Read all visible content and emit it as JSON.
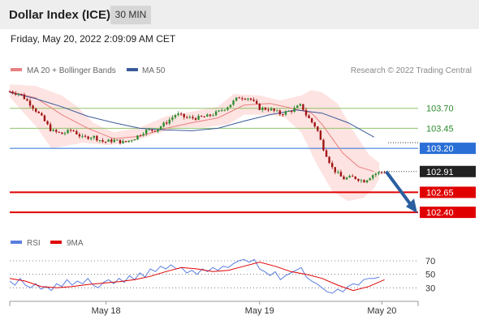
{
  "header": {
    "title": "Dollar Index (ICE)",
    "timeframe": "30 MIN",
    "datetime": "Friday, May 20, 2022 2:09:09 AM CET"
  },
  "legend": {
    "ma20_label": "MA 20 + Bollinger Bands",
    "ma50_label": "MA 50",
    "copyright": "Research © 2022 Trading Central"
  },
  "rsi_legend": {
    "rsi_label": "RSI",
    "ma_label": "9MA"
  },
  "colors": {
    "candle_up": "#2e8b2e",
    "candle_down": "#a01515",
    "ma20": "#e88080",
    "ma50": "#3a5a9a",
    "bollinger_fill": "#fde3e1",
    "resistance": "#8fc36a",
    "pivot": "#2a6fd6",
    "support": "#e00000",
    "arrow": "#2a5fa0",
    "rsi": "#5a7ee0",
    "rsi_ma": "#e00000"
  },
  "chart_data": [
    {
      "type": "candlestick",
      "ylim": [
        102.3,
        103.92
      ],
      "x_ticks": [
        "May 18",
        "May 19",
        "May 20"
      ],
      "levels": [
        {
          "label": "103.70",
          "value": 103.7,
          "kind": "resistance"
        },
        {
          "label": "103.45",
          "value": 103.45,
          "kind": "resistance"
        },
        {
          "label": "103.20",
          "value": 103.2,
          "kind": "pivot"
        },
        {
          "label": "102.91",
          "value": 102.91,
          "kind": "last"
        },
        {
          "label": "102.65",
          "value": 102.65,
          "kind": "support"
        },
        {
          "label": "102.40",
          "value": 102.4,
          "kind": "support"
        }
      ],
      "bar_count": 130,
      "close_path": [
        [
          0,
          103.91
        ],
        [
          4,
          103.88
        ],
        [
          8,
          103.75
        ],
        [
          12,
          103.6
        ],
        [
          16,
          103.42
        ],
        [
          20,
          103.38
        ],
        [
          24,
          103.43
        ],
        [
          28,
          103.33
        ],
        [
          32,
          103.35
        ],
        [
          36,
          103.28
        ],
        [
          40,
          103.3
        ],
        [
          44,
          103.27
        ],
        [
          48,
          103.33
        ],
        [
          52,
          103.42
        ],
        [
          56,
          103.43
        ],
        [
          60,
          103.52
        ],
        [
          64,
          103.63
        ],
        [
          68,
          103.58
        ],
        [
          72,
          103.58
        ],
        [
          76,
          103.6
        ],
        [
          80,
          103.65
        ],
        [
          84,
          103.73
        ],
        [
          88,
          103.84
        ],
        [
          92,
          103.83
        ],
        [
          96,
          103.7
        ],
        [
          100,
          103.69
        ],
        [
          104,
          103.63
        ],
        [
          108,
          103.67
        ],
        [
          112,
          103.74
        ],
        [
          114,
          103.61
        ],
        [
          118,
          103.45
        ],
        [
          120,
          103.24
        ],
        [
          124,
          102.95
        ],
        [
          128,
          102.82
        ],
        [
          132,
          102.84
        ],
        [
          136,
          102.79
        ],
        [
          140,
          102.88
        ],
        [
          144,
          102.91
        ]
      ],
      "ma20": [
        [
          0,
          103.91
        ],
        [
          10,
          103.83
        ],
        [
          20,
          103.62
        ],
        [
          30,
          103.45
        ],
        [
          40,
          103.32
        ],
        [
          50,
          103.35
        ],
        [
          60,
          103.45
        ],
        [
          70,
          103.52
        ],
        [
          80,
          103.58
        ],
        [
          90,
          103.74
        ],
        [
          100,
          103.76
        ],
        [
          110,
          103.69
        ],
        [
          116,
          103.64
        ],
        [
          120,
          103.5
        ],
        [
          124,
          103.32
        ],
        [
          128,
          103.14
        ],
        [
          134,
          102.97
        ],
        [
          140,
          102.91
        ]
      ],
      "bb_upper": [
        [
          0,
          104.0
        ],
        [
          10,
          103.98
        ],
        [
          20,
          103.86
        ],
        [
          26,
          103.72
        ],
        [
          32,
          103.52
        ],
        [
          40,
          103.4
        ],
        [
          50,
          103.46
        ],
        [
          60,
          103.6
        ],
        [
          70,
          103.66
        ],
        [
          80,
          103.72
        ],
        [
          86,
          103.88
        ],
        [
          96,
          103.86
        ],
        [
          104,
          103.8
        ],
        [
          112,
          103.86
        ],
        [
          116,
          103.93
        ],
        [
          120,
          103.9
        ],
        [
          126,
          103.76
        ],
        [
          132,
          103.42
        ],
        [
          138,
          103.12
        ],
        [
          142,
          103.02
        ]
      ],
      "bb_lower": [
        [
          0,
          103.84
        ],
        [
          6,
          103.62
        ],
        [
          10,
          103.48
        ],
        [
          16,
          103.2
        ],
        [
          20,
          103.22
        ],
        [
          28,
          103.27
        ],
        [
          38,
          103.24
        ],
        [
          48,
          103.29
        ],
        [
          56,
          103.38
        ],
        [
          66,
          103.46
        ],
        [
          74,
          103.46
        ],
        [
          84,
          103.5
        ],
        [
          90,
          103.62
        ],
        [
          100,
          103.62
        ],
        [
          106,
          103.58
        ],
        [
          112,
          103.4
        ],
        [
          118,
          103.0
        ],
        [
          124,
          102.66
        ],
        [
          130,
          102.54
        ],
        [
          136,
          102.58
        ],
        [
          140,
          102.7
        ],
        [
          142,
          102.82
        ]
      ],
      "ma50": [
        [
          0,
          103.9
        ],
        [
          10,
          103.82
        ],
        [
          20,
          103.72
        ],
        [
          30,
          103.6
        ],
        [
          40,
          103.52
        ],
        [
          50,
          103.45
        ],
        [
          60,
          103.43
        ],
        [
          70,
          103.42
        ],
        [
          80,
          103.45
        ],
        [
          90,
          103.54
        ],
        [
          100,
          103.62
        ],
        [
          110,
          103.68
        ],
        [
          120,
          103.64
        ],
        [
          130,
          103.52
        ],
        [
          140,
          103.34
        ]
      ],
      "projection": {
        "from": 102.91,
        "to": 102.4
      }
    },
    {
      "type": "line",
      "name": "RSI",
      "ylim": [
        10,
        82
      ],
      "y_ticks": [
        70,
        50,
        30
      ],
      "series": [
        {
          "name": "RSI",
          "points": [
            [
              0,
              40
            ],
            [
              2,
              34
            ],
            [
              4,
              44
            ],
            [
              6,
              34
            ],
            [
              8,
              30
            ],
            [
              10,
              36
            ],
            [
              12,
              28
            ],
            [
              14,
              32
            ],
            [
              16,
              26
            ],
            [
              18,
              36
            ],
            [
              20,
              32
            ],
            [
              22,
              42
            ],
            [
              24,
              34
            ],
            [
              26,
              40
            ],
            [
              28,
              36
            ],
            [
              30,
              44
            ],
            [
              32,
              34
            ],
            [
              34,
              30
            ],
            [
              36,
              38
            ],
            [
              38,
              42
            ],
            [
              40,
              36
            ],
            [
              42,
              44
            ],
            [
              44,
              38
            ],
            [
              46,
              48
            ],
            [
              48,
              42
            ],
            [
              50,
              52
            ],
            [
              52,
              46
            ],
            [
              54,
              58
            ],
            [
              56,
              54
            ],
            [
              58,
              62
            ],
            [
              60,
              58
            ],
            [
              62,
              64
            ],
            [
              64,
              58
            ],
            [
              66,
              60
            ],
            [
              68,
              52
            ],
            [
              70,
              56
            ],
            [
              72,
              50
            ],
            [
              74,
              58
            ],
            [
              76,
              54
            ],
            [
              78,
              60
            ],
            [
              80,
              56
            ],
            [
              82,
              62
            ],
            [
              84,
              60
            ],
            [
              86,
              66
            ],
            [
              88,
              70
            ],
            [
              90,
              72
            ],
            [
              92,
              68
            ],
            [
              94,
              72
            ],
            [
              96,
              58
            ],
            [
              98,
              54
            ],
            [
              100,
              48
            ],
            [
              102,
              54
            ],
            [
              104,
              42
            ],
            [
              106,
              48
            ],
            [
              108,
              52
            ],
            [
              110,
              56
            ],
            [
              112,
              60
            ],
            [
              114,
              46
            ],
            [
              116,
              40
            ],
            [
              118,
              36
            ],
            [
              120,
              30
            ],
            [
              122,
              24
            ],
            [
              124,
              22
            ],
            [
              126,
              28
            ],
            [
              128,
              24
            ],
            [
              130,
              32
            ],
            [
              132,
              36
            ],
            [
              134,
              34
            ],
            [
              136,
              42
            ],
            [
              138,
              44
            ],
            [
              140,
              44
            ],
            [
              142,
              46
            ]
          ]
        },
        {
          "name": "9MA",
          "points": [
            [
              0,
              44
            ],
            [
              6,
              40
            ],
            [
              12,
              32
            ],
            [
              18,
              30
            ],
            [
              24,
              32
            ],
            [
              30,
              35
            ],
            [
              36,
              37
            ],
            [
              42,
              39
            ],
            [
              48,
              42
            ],
            [
              54,
              47
            ],
            [
              60,
              54
            ],
            [
              66,
              60
            ],
            [
              72,
              58
            ],
            [
              78,
              54
            ],
            [
              84,
              56
            ],
            [
              90,
              62
            ],
            [
              96,
              68
            ],
            [
              102,
              62
            ],
            [
              108,
              54
            ],
            [
              114,
              50
            ],
            [
              120,
              44
            ],
            [
              126,
              34
            ],
            [
              132,
              26
            ],
            [
              138,
              32
            ],
            [
              144,
              42
            ]
          ]
        }
      ]
    }
  ]
}
